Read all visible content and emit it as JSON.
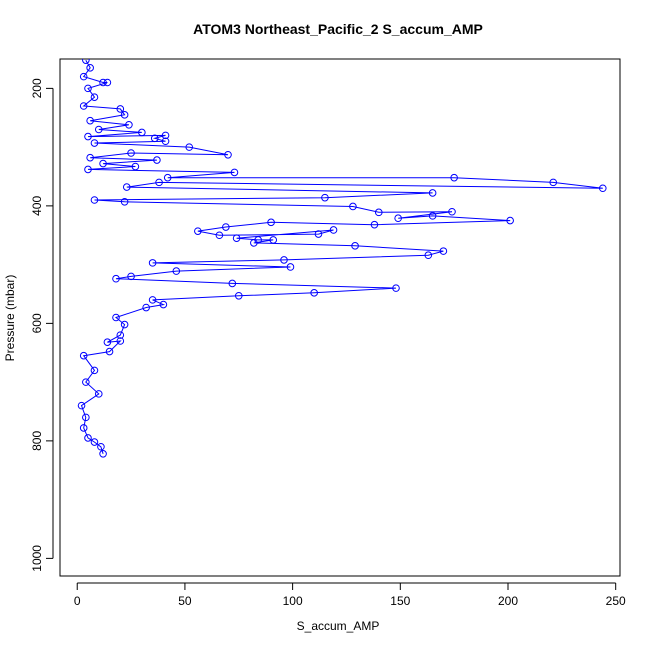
{
  "chart_data": {
    "type": "scatter",
    "title": "ATOM3 Northeast_Pacific_2 S_accum_AMP",
    "xlabel": "S_accum_AMP",
    "ylabel": "Pressure (mbar)",
    "xlim": [
      -8,
      252
    ],
    "ylim": [
      1030,
      150
    ],
    "y_reversed": true,
    "grid": false,
    "legend": "none",
    "x_ticks": [
      0,
      50,
      100,
      150,
      200,
      250
    ],
    "y_ticks": [
      200,
      400,
      600,
      800,
      1000
    ],
    "colors": {
      "series": "#0000ff",
      "axes": "#000000"
    },
    "marker": "open-circle",
    "connect_points": true,
    "series": [
      {
        "values": [
          {
            "x": 4,
            "y": 152
          },
          {
            "x": 6,
            "y": 165
          },
          {
            "x": 3,
            "y": 180
          },
          {
            "x": 12,
            "y": 190
          },
          {
            "x": 14,
            "y": 190
          },
          {
            "x": 5,
            "y": 200
          },
          {
            "x": 8,
            "y": 215
          },
          {
            "x": 3,
            "y": 230
          },
          {
            "x": 20,
            "y": 235
          },
          {
            "x": 22,
            "y": 245
          },
          {
            "x": 6,
            "y": 255
          },
          {
            "x": 24,
            "y": 262
          },
          {
            "x": 10,
            "y": 270
          },
          {
            "x": 30,
            "y": 275
          },
          {
            "x": 5,
            "y": 282
          },
          {
            "x": 41,
            "y": 280
          },
          {
            "x": 36,
            "y": 285
          },
          {
            "x": 41,
            "y": 290
          },
          {
            "x": 8,
            "y": 293
          },
          {
            "x": 52,
            "y": 300
          },
          {
            "x": 70,
            "y": 313
          },
          {
            "x": 25,
            "y": 310
          },
          {
            "x": 6,
            "y": 318
          },
          {
            "x": 37,
            "y": 322
          },
          {
            "x": 12,
            "y": 328
          },
          {
            "x": 27,
            "y": 333
          },
          {
            "x": 5,
            "y": 338
          },
          {
            "x": 73,
            "y": 343
          },
          {
            "x": 42,
            "y": 352
          },
          {
            "x": 175,
            "y": 352
          },
          {
            "x": 221,
            "y": 360
          },
          {
            "x": 244,
            "y": 370
          },
          {
            "x": 38,
            "y": 360
          },
          {
            "x": 23,
            "y": 368
          },
          {
            "x": 165,
            "y": 378
          },
          {
            "x": 115,
            "y": 386
          },
          {
            "x": 8,
            "y": 390
          },
          {
            "x": 22,
            "y": 393
          },
          {
            "x": 128,
            "y": 401
          },
          {
            "x": 140,
            "y": 411
          },
          {
            "x": 174,
            "y": 410
          },
          {
            "x": 149,
            "y": 421
          },
          {
            "x": 165,
            "y": 417
          },
          {
            "x": 201,
            "y": 425
          },
          {
            "x": 138,
            "y": 432
          },
          {
            "x": 90,
            "y": 428
          },
          {
            "x": 69,
            "y": 436
          },
          {
            "x": 56,
            "y": 443
          },
          {
            "x": 66,
            "y": 450
          },
          {
            "x": 112,
            "y": 448
          },
          {
            "x": 119,
            "y": 441
          },
          {
            "x": 74,
            "y": 455
          },
          {
            "x": 84,
            "y": 458
          },
          {
            "x": 91,
            "y": 458
          },
          {
            "x": 82,
            "y": 463
          },
          {
            "x": 129,
            "y": 468
          },
          {
            "x": 170,
            "y": 477
          },
          {
            "x": 163,
            "y": 484
          },
          {
            "x": 96,
            "y": 492
          },
          {
            "x": 35,
            "y": 497
          },
          {
            "x": 99,
            "y": 504
          },
          {
            "x": 46,
            "y": 511
          },
          {
            "x": 25,
            "y": 520
          },
          {
            "x": 18,
            "y": 524
          },
          {
            "x": 72,
            "y": 532
          },
          {
            "x": 148,
            "y": 540
          },
          {
            "x": 110,
            "y": 548
          },
          {
            "x": 75,
            "y": 553
          },
          {
            "x": 35,
            "y": 560
          },
          {
            "x": 40,
            "y": 568
          },
          {
            "x": 32,
            "y": 573
          },
          {
            "x": 18,
            "y": 590
          },
          {
            "x": 22,
            "y": 602
          },
          {
            "x": 20,
            "y": 620
          },
          {
            "x": 14,
            "y": 632
          },
          {
            "x": 20,
            "y": 630
          },
          {
            "x": 15,
            "y": 648
          },
          {
            "x": 3,
            "y": 655
          },
          {
            "x": 8,
            "y": 680
          },
          {
            "x": 4,
            "y": 700
          },
          {
            "x": 10,
            "y": 720
          },
          {
            "x": 2,
            "y": 740
          },
          {
            "x": 4,
            "y": 760
          },
          {
            "x": 3,
            "y": 778
          },
          {
            "x": 5,
            "y": 795
          },
          {
            "x": 8,
            "y": 802
          },
          {
            "x": 11,
            "y": 810
          },
          {
            "x": 12,
            "y": 822
          }
        ]
      }
    ]
  }
}
